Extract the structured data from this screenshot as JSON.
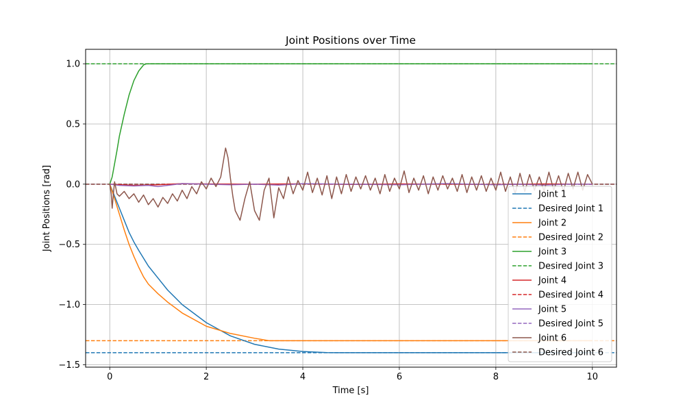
{
  "chart_data": {
    "type": "line",
    "title": "Joint Positions over Time",
    "xlabel": "Time [s]",
    "ylabel": "Joint Positions [rad]",
    "xlim": [
      -0.5,
      10.5
    ],
    "ylim": [
      -1.52,
      1.12
    ],
    "xticks": [
      0,
      2,
      4,
      6,
      8,
      10
    ],
    "xtick_labels": [
      "0",
      "2",
      "4",
      "6",
      "8",
      "10"
    ],
    "yticks": [
      1.0,
      0.5,
      0.0,
      -0.5,
      -1.0,
      -1.5
    ],
    "ytick_labels": [
      "1.0",
      "0.5",
      "0.0",
      "−0.5",
      "−1.0",
      "−1.5"
    ],
    "grid": true,
    "legend_position": "lower-right",
    "series": [
      {
        "name": "Joint 1",
        "color": "#1f77b4",
        "style": "solid",
        "target": -1.4,
        "x": [
          0,
          0.1,
          0.2,
          0.3,
          0.4,
          0.5,
          0.6,
          0.8,
          1.0,
          1.2,
          1.5,
          2.0,
          2.5,
          3.0,
          3.5,
          4.0,
          4.5,
          4.7,
          5.0,
          6.0,
          7.0,
          8.0,
          9.0,
          10.0
        ],
        "y": [
          0,
          -0.1,
          -0.2,
          -0.3,
          -0.4,
          -0.48,
          -0.55,
          -0.68,
          -0.78,
          -0.88,
          -1.0,
          -1.15,
          -1.26,
          -1.33,
          -1.37,
          -1.39,
          -1.399,
          -1.4,
          -1.4,
          -1.4,
          -1.4,
          -1.4,
          -1.4,
          -1.4
        ]
      },
      {
        "name": "Desired Joint 1",
        "color": "#1f77b4",
        "style": "dashed",
        "x": [
          -0.5,
          10.5
        ],
        "y": [
          -1.4,
          -1.4
        ]
      },
      {
        "name": "Joint 2",
        "color": "#ff7f0e",
        "style": "solid",
        "target": -1.3,
        "x": [
          0,
          0.1,
          0.2,
          0.3,
          0.4,
          0.5,
          0.6,
          0.7,
          0.8,
          1.0,
          1.2,
          1.5,
          2.0,
          2.5,
          3.0,
          3.3,
          3.5,
          4.0,
          5.0,
          6.0,
          7.0,
          8.0,
          9.0,
          10.0
        ],
        "y": [
          0,
          -0.12,
          -0.25,
          -0.38,
          -0.5,
          -0.6,
          -0.69,
          -0.77,
          -0.83,
          -0.91,
          -0.98,
          -1.07,
          -1.18,
          -1.24,
          -1.28,
          -1.3,
          -1.3,
          -1.3,
          -1.3,
          -1.3,
          -1.3,
          -1.3,
          -1.3,
          -1.3
        ]
      },
      {
        "name": "Desired Joint 2",
        "color": "#ff7f0e",
        "style": "dashed",
        "x": [
          -0.5,
          10.5
        ],
        "y": [
          -1.3,
          -1.3
        ]
      },
      {
        "name": "Joint 3",
        "color": "#2ca02c",
        "style": "solid",
        "target": 1.0,
        "x": [
          0,
          0.05,
          0.1,
          0.15,
          0.2,
          0.3,
          0.4,
          0.5,
          0.6,
          0.7,
          0.75,
          0.8,
          0.9,
          1.0,
          2.0,
          4.0,
          6.0,
          8.0,
          10.0
        ],
        "y": [
          0,
          0.06,
          0.17,
          0.28,
          0.4,
          0.58,
          0.74,
          0.86,
          0.94,
          0.99,
          0.998,
          1.0,
          1.0,
          1.0,
          1.0,
          1.0,
          1.0,
          1.0,
          1.0
        ]
      },
      {
        "name": "Desired Joint 3",
        "color": "#2ca02c",
        "style": "dashed",
        "x": [
          -0.5,
          10.5
        ],
        "y": [
          1.0,
          1.0
        ]
      },
      {
        "name": "Joint 4",
        "color": "#d62728",
        "style": "solid",
        "target": 0.0,
        "x": [
          0,
          0.5,
          1.0,
          1.5,
          2.0,
          3.0,
          4.0,
          5.0,
          6.0,
          7.0,
          8.0,
          9.0,
          10.0
        ],
        "y": [
          0,
          -0.01,
          -0.005,
          0.005,
          0.002,
          0.0,
          0.003,
          -0.002,
          0.002,
          0.0,
          -0.002,
          0.002,
          0.0
        ]
      },
      {
        "name": "Desired Joint 4",
        "color": "#d62728",
        "style": "dashed",
        "x": [
          -0.5,
          10.5
        ],
        "y": [
          0,
          0
        ]
      },
      {
        "name": "Joint 5",
        "color": "#9467bd",
        "style": "solid",
        "target": 0.0,
        "x": [
          0,
          0.2,
          0.5,
          0.8,
          1.0,
          1.2,
          1.5,
          2.0,
          2.5,
          3.0,
          3.5,
          4.0,
          5.0,
          6.0,
          7.0,
          8.0,
          8.5,
          9.0,
          9.5,
          10.0
        ],
        "y": [
          0,
          -0.01,
          -0.015,
          -0.01,
          -0.02,
          -0.01,
          0.005,
          0.0,
          -0.005,
          0.0,
          -0.008,
          0.004,
          0.0,
          -0.005,
          0.005,
          -0.005,
          0.0,
          -0.008,
          0.0,
          0.0
        ]
      },
      {
        "name": "Desired Joint 5",
        "color": "#9467bd",
        "style": "dashed",
        "x": [
          -0.5,
          10.5
        ],
        "y": [
          0,
          0
        ]
      },
      {
        "name": "Joint 6",
        "color": "#8c564b",
        "style": "solid",
        "target": 0.0,
        "x": [
          0,
          0.03,
          0.05,
          0.08,
          0.1,
          0.15,
          0.2,
          0.3,
          0.4,
          0.5,
          0.6,
          0.7,
          0.8,
          0.9,
          1.0,
          1.1,
          1.2,
          1.3,
          1.4,
          1.5,
          1.6,
          1.7,
          1.8,
          1.9,
          2.0,
          2.1,
          2.2,
          2.3,
          2.4,
          2.45,
          2.5,
          2.55,
          2.6,
          2.7,
          2.8,
          2.9,
          3.0,
          3.1,
          3.2,
          3.3,
          3.4,
          3.5,
          3.6,
          3.7,
          3.8,
          3.9,
          4.0,
          4.1,
          4.2,
          4.3,
          4.4,
          4.5,
          4.6,
          4.7,
          4.8,
          4.9,
          5.0,
          5.1,
          5.2,
          5.3,
          5.4,
          5.5,
          5.6,
          5.7,
          5.8,
          5.9,
          6.0,
          6.1,
          6.2,
          6.3,
          6.4,
          6.5,
          6.6,
          6.7,
          6.8,
          6.9,
          7.0,
          7.1,
          7.2,
          7.3,
          7.4,
          7.5,
          7.6,
          7.7,
          7.8,
          7.9,
          8.0,
          8.1,
          8.2,
          8.3,
          8.4,
          8.5,
          8.6,
          8.7,
          8.8,
          8.9,
          9.0,
          9.1,
          9.2,
          9.3,
          9.4,
          9.5,
          9.6,
          9.7,
          9.8,
          9.9,
          10.0
        ],
        "y": [
          0,
          -0.08,
          -0.2,
          -0.06,
          0.02,
          -0.08,
          -0.1,
          -0.06,
          -0.12,
          -0.08,
          -0.15,
          -0.09,
          -0.17,
          -0.12,
          -0.19,
          -0.11,
          -0.16,
          -0.08,
          -0.14,
          -0.05,
          -0.12,
          -0.02,
          -0.08,
          0.02,
          -0.04,
          0.05,
          -0.02,
          0.06,
          0.3,
          0.22,
          0.05,
          -0.1,
          -0.22,
          -0.3,
          -0.12,
          0.02,
          -0.22,
          -0.3,
          -0.05,
          0.05,
          -0.28,
          -0.03,
          -0.12,
          0.06,
          -0.08,
          0.03,
          -0.05,
          0.1,
          -0.07,
          0.05,
          -0.09,
          0.07,
          -0.12,
          0.06,
          -0.08,
          0.08,
          -0.06,
          0.06,
          -0.04,
          0.07,
          -0.05,
          0.05,
          -0.08,
          0.08,
          -0.06,
          0.05,
          -0.04,
          0.11,
          -0.07,
          0.05,
          -0.05,
          0.07,
          -0.08,
          0.06,
          -0.05,
          0.07,
          -0.04,
          0.05,
          -0.06,
          0.08,
          -0.07,
          0.06,
          -0.05,
          0.07,
          -0.06,
          0.05,
          -0.05,
          0.1,
          -0.06,
          0.06,
          -0.08,
          0.09,
          -0.06,
          0.08,
          -0.05,
          0.06,
          -0.06,
          0.1,
          -0.05,
          0.07,
          -0.06,
          0.09,
          -0.04,
          0.1,
          -0.05,
          0.08,
          0.0
        ]
      },
      {
        "name": "Desired Joint 6",
        "color": "#8c564b",
        "style": "dashed",
        "x": [
          -0.5,
          10.5
        ],
        "y": [
          0,
          0
        ]
      }
    ]
  }
}
